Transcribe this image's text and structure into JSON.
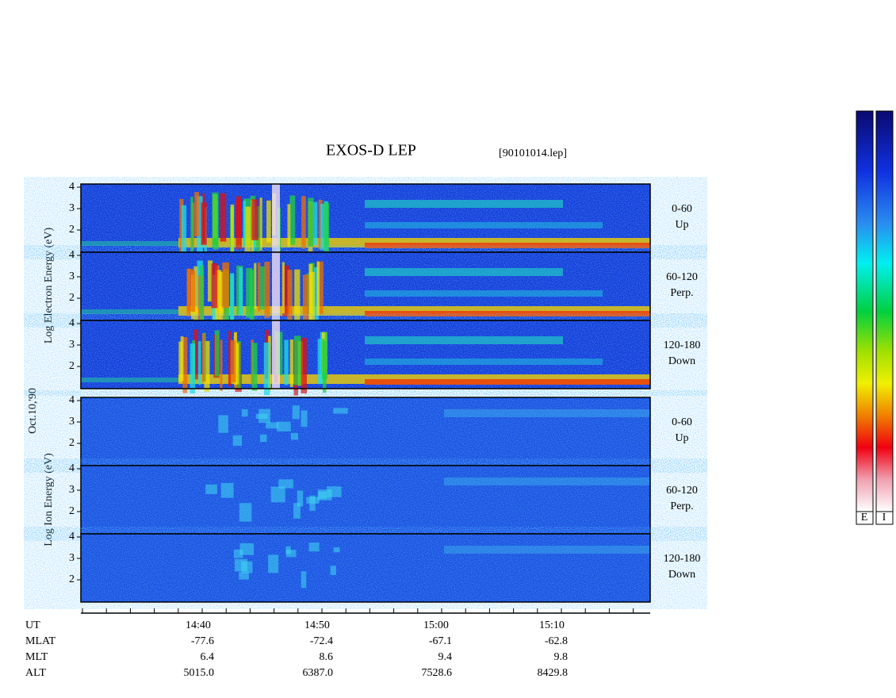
{
  "header": {
    "title": "EXOS-D LEP",
    "file": "[90101014.lep]"
  },
  "date": "Oct.10,'90",
  "electron": {
    "axis_label": "Log Electron Energy (eV)",
    "panels": [
      {
        "yticks": [
          2,
          3,
          4
        ],
        "label": [
          "0-60",
          "Up"
        ]
      },
      {
        "yticks": [
          2,
          3,
          4
        ],
        "label": [
          "60-120",
          "Perp."
        ]
      },
      {
        "yticks": [
          2,
          3,
          4
        ],
        "label": [
          "120-180",
          "Down"
        ]
      }
    ]
  },
  "ion": {
    "axis_label": "Log Ion Energy (eV)",
    "panels": [
      {
        "yticks": [
          2,
          3,
          4
        ],
        "label": [
          "0-60",
          "Up"
        ]
      },
      {
        "yticks": [
          2,
          3,
          4
        ],
        "label": [
          "60-120",
          "Perp."
        ]
      },
      {
        "yticks": [
          2,
          3,
          4
        ],
        "label": [
          "120-180",
          "Down"
        ]
      }
    ]
  },
  "orbit": {
    "rows": [
      [
        "UT",
        "14:40",
        "14:50",
        "15:00",
        "15:10"
      ],
      [
        "MLAT",
        "-77.6",
        "-72.4",
        "-67.1",
        "-62.8"
      ],
      [
        "MLT",
        "6.4",
        "8.6",
        "9.4",
        "9.8"
      ],
      [
        "ALT",
        "5015.0",
        "6387.0",
        "7528.6",
        "8429.8"
      ]
    ]
  },
  "colorbars": [
    "E",
    "I"
  ]
}
